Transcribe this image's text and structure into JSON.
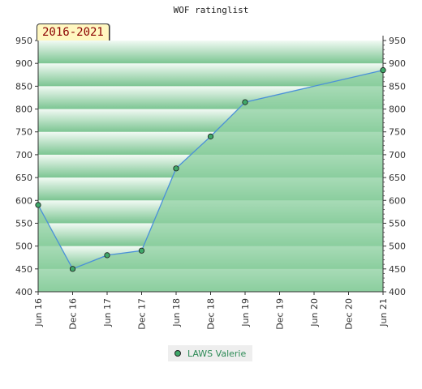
{
  "chart_data": {
    "type": "area",
    "title": "WOF ratinglist",
    "period_badge": "2016-2021",
    "x_ticks": [
      "Jun 16",
      "Dec 16",
      "Jun 17",
      "Dec 17",
      "Jun 18",
      "Dec 18",
      "Jun 19",
      "Dec 19",
      "Jun 20",
      "Dec 20",
      "Jun 21"
    ],
    "y_ticks": [
      400,
      450,
      500,
      550,
      600,
      650,
      700,
      750,
      800,
      850,
      900,
      950
    ],
    "ylim": [
      400,
      950
    ],
    "grid": true,
    "legend_position": "bottom",
    "series": [
      {
        "name": "LAWS Valerie",
        "x": [
          "Jun 16",
          "Dec 16",
          "Jun 17",
          "Dec 17",
          "Jun 18",
          "Dec 18",
          "Jun 19",
          "Jun 21"
        ],
        "values": [
          590,
          450,
          480,
          490,
          670,
          740,
          815,
          885
        ]
      }
    ],
    "colors": {
      "area_fill": "#8fd0a2",
      "line": "#4a90d9",
      "marker": "#3fa869",
      "band_dark": "#7cc592",
      "band_light": "#f2faf4"
    }
  }
}
